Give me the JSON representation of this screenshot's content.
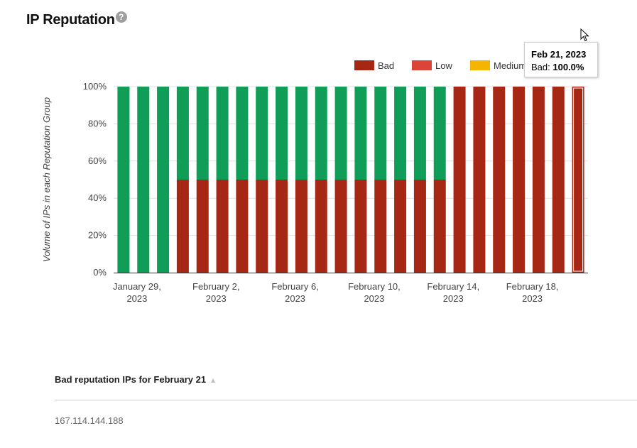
{
  "header": {
    "title": "IP Reputation",
    "help_icon": "question-mark-icon"
  },
  "chart_data": {
    "type": "bar",
    "stacked": true,
    "ylabel": "Volume of IPs in each Reputation Group",
    "ylim": [
      0,
      100
    ],
    "ytick_labels": [
      "0%",
      "20%",
      "40%",
      "60%",
      "80%",
      "100%"
    ],
    "x": [
      "2023-01-29",
      "2023-01-30",
      "2023-01-31",
      "2023-02-01",
      "2023-02-02",
      "2023-02-03",
      "2023-02-04",
      "2023-02-05",
      "2023-02-06",
      "2023-02-07",
      "2023-02-08",
      "2023-02-09",
      "2023-02-10",
      "2023-02-11",
      "2023-02-12",
      "2023-02-13",
      "2023-02-14",
      "2023-02-15",
      "2023-02-16",
      "2023-02-17",
      "2023-02-18",
      "2023-02-19",
      "2023-02-20",
      "2023-02-21"
    ],
    "xtick_labels": [
      {
        "line1": "January 29,",
        "line2": "2023"
      },
      {
        "line1": "February 2,",
        "line2": "2023"
      },
      {
        "line1": "February 6,",
        "line2": "2023"
      },
      {
        "line1": "February 10,",
        "line2": "2023"
      },
      {
        "line1": "February 14,",
        "line2": "2023"
      },
      {
        "line1": "February 18,",
        "line2": "2023"
      }
    ],
    "series": [
      {
        "name": "Bad",
        "color": "#a52714",
        "values": [
          0,
          0,
          0,
          50,
          50,
          50,
          50,
          50,
          50,
          50,
          50,
          50,
          50,
          50,
          50,
          50,
          50,
          100,
          100,
          100,
          100,
          100,
          100,
          100
        ]
      },
      {
        "name": "Low",
        "color": "#db4437",
        "values": [
          0,
          0,
          0,
          0,
          0,
          0,
          0,
          0,
          0,
          0,
          0,
          0,
          0,
          0,
          0,
          0,
          0,
          0,
          0,
          0,
          0,
          0,
          0,
          0
        ]
      },
      {
        "name": "Medium",
        "color": "#f4b400",
        "values": [
          0,
          0,
          0,
          0,
          0,
          0,
          0,
          0,
          0,
          0,
          0,
          0,
          0,
          0,
          0,
          0,
          0,
          0,
          0,
          0,
          0,
          0,
          0,
          0
        ]
      },
      {
        "name": "",
        "color": "#0f9d58",
        "values": [
          100,
          100,
          100,
          50,
          50,
          50,
          50,
          50,
          50,
          50,
          50,
          50,
          50,
          50,
          50,
          50,
          50,
          0,
          0,
          0,
          0,
          0,
          0,
          0
        ]
      }
    ],
    "legend": [
      "Bad",
      "Low",
      "Medium"
    ],
    "legend_position": "top-right",
    "highlighted_index": 23
  },
  "tooltip": {
    "date": "Feb 21, 2023",
    "label": "Bad:",
    "value": "100.0%"
  },
  "table": {
    "header": "Bad reputation IPs for February 21",
    "sort_icon": "▲",
    "rows": [
      "167.114.144.188"
    ]
  }
}
